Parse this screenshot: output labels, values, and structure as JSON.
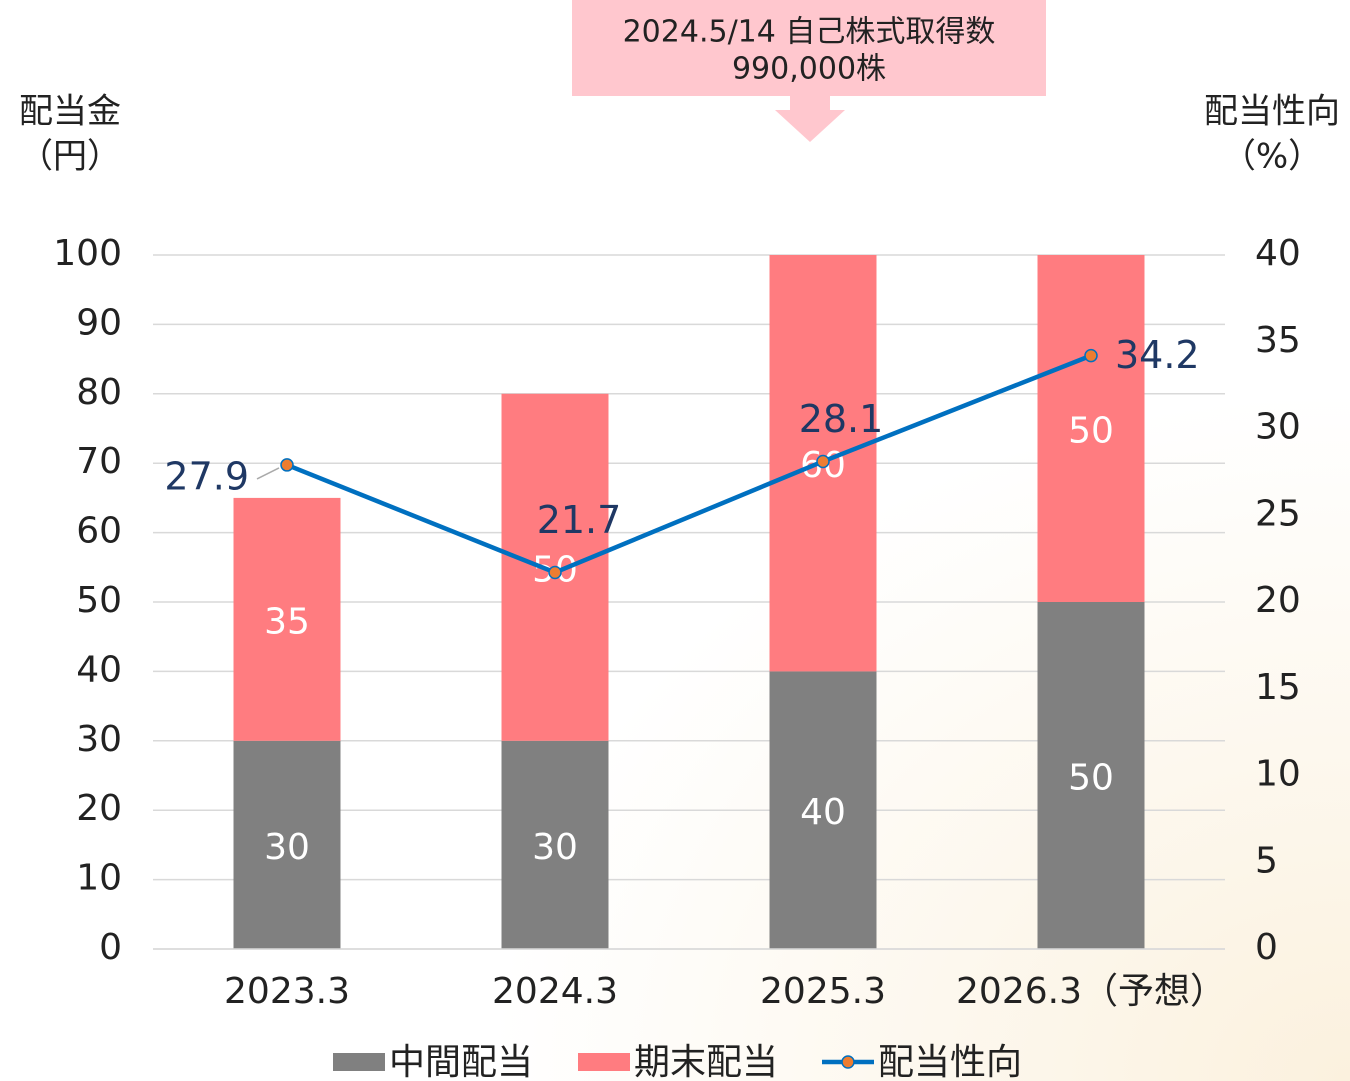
{
  "chart_data": {
    "type": "bar",
    "stacked": true,
    "annotation": [
      "2024.5/14 自己株式取得数",
      "990,000株"
    ],
    "ylabel": [
      "配当金",
      "（円）"
    ],
    "y2label": [
      "配当性向",
      "（%）"
    ],
    "categories": [
      "2023.3",
      "2024.3",
      "2025.3",
      "2026.3（予想）"
    ],
    "series": [
      {
        "name": "中間配当",
        "type": "bar",
        "color": "#808080",
        "values": [
          30,
          30,
          40,
          50
        ]
      },
      {
        "name": "期末配当",
        "type": "bar",
        "color": "#ff7c80",
        "values": [
          35,
          50,
          60,
          50
        ]
      },
      {
        "name": "配当性向",
        "type": "line",
        "axis": "y2",
        "color": "#0070c0",
        "marker_color": "#ed7d31",
        "values": [
          27.9,
          21.7,
          28.1,
          34.2
        ]
      }
    ],
    "ylim": [
      0,
      100
    ],
    "yticks": [
      0,
      10,
      20,
      30,
      40,
      50,
      60,
      70,
      80,
      90,
      100
    ],
    "y2lim": [
      0,
      40
    ],
    "y2ticks": [
      0,
      5,
      10,
      15,
      20,
      25,
      30,
      35,
      40
    ],
    "grid": true,
    "legend": "bottom"
  }
}
